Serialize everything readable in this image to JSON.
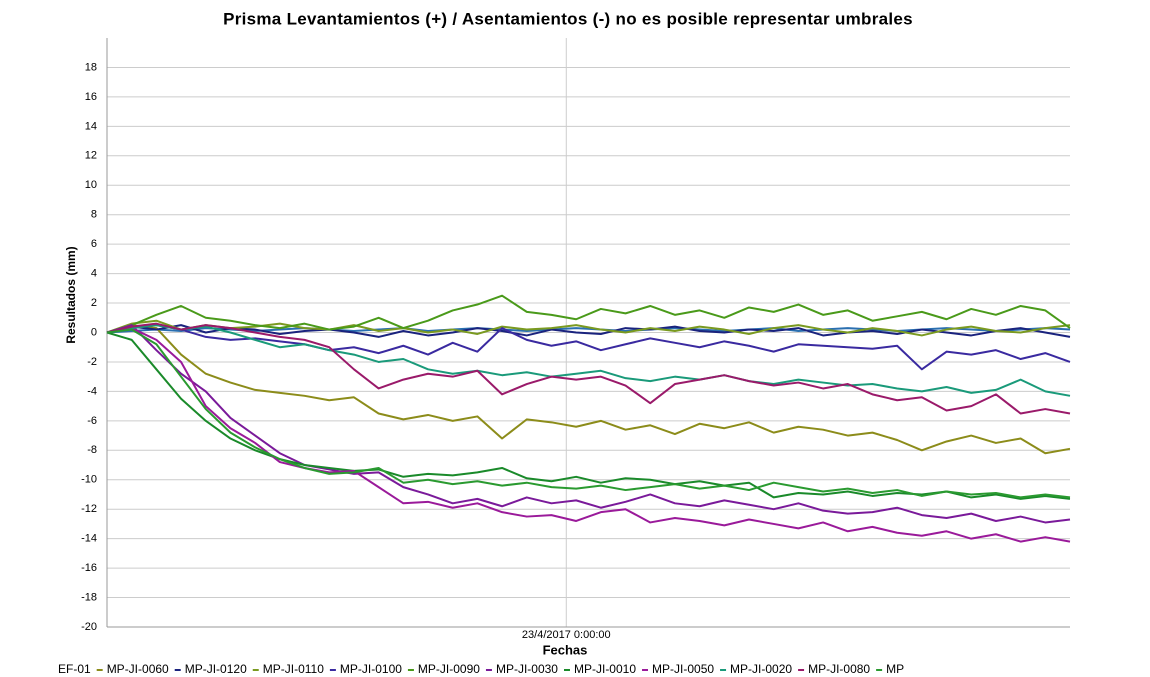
{
  "chart_data": {
    "type": "line",
    "title": "Prisma Levantamientos (+) / Asentamientos (-) no es posible representar umbrales",
    "xlabel": "Fechas",
    "ylabel": "Resultados (mm)",
    "xlim": [
      0,
      39
    ],
    "xticks": [
      {
        "value": 18.6,
        "label": "23/4/2017 0:00:00"
      }
    ],
    "ylim": [
      -20,
      20
    ],
    "yticks": [
      -20,
      -18,
      -16,
      -14,
      -12,
      -10,
      -8,
      -6,
      -4,
      -2,
      0,
      2,
      4,
      6,
      8,
      10,
      12,
      14,
      16,
      18
    ],
    "grid": true,
    "legend": "bottom",
    "series": [
      {
        "name": "EF-01",
        "color": "#2a6fb0",
        "values": [
          0,
          0.1,
          0.2,
          0.1,
          0.3,
          0.2,
          0.1,
          0.2,
          0.3,
          0.2,
          0.1,
          0.2,
          0.3,
          0.1,
          0.2,
          0.3,
          0.2,
          0.1,
          0.2,
          0.3,
          0.2,
          0.1,
          0.2,
          0.3,
          0.2,
          0.1,
          0.2,
          0.3,
          0.1,
          0.2,
          0.3,
          0.2,
          0.1,
          0.2,
          0.3,
          0.2,
          0.1,
          0.2,
          0.3,
          0.2
        ]
      },
      {
        "name": "MP-JI-0060",
        "color": "#8c8c1a",
        "values": [
          0,
          0.5,
          0.3,
          -1.5,
          -2.8,
          -3.4,
          -3.9,
          -4.1,
          -4.3,
          -4.6,
          -4.4,
          -5.5,
          -5.9,
          -5.6,
          -6.0,
          -5.7,
          -7.2,
          -5.9,
          -6.1,
          -6.4,
          -6.0,
          -6.6,
          -6.3,
          -6.9,
          -6.2,
          -6.5,
          -6.1,
          -6.8,
          -6.4,
          -6.6,
          -7.0,
          -6.8,
          -7.3,
          -8.0,
          -7.4,
          -7.0,
          -7.5,
          -7.2,
          -8.2,
          -7.9
        ]
      },
      {
        "name": "MP-JI-0120",
        "color": "#1a237e",
        "values": [
          0,
          0.4,
          0.2,
          0.5,
          0.0,
          0.3,
          0.2,
          -0.1,
          0.1,
          0.2,
          0.0,
          -0.3,
          0.1,
          -0.2,
          0.0,
          0.3,
          0.1,
          -0.2,
          0.2,
          0.0,
          -0.1,
          0.3,
          0.2,
          0.4,
          0.1,
          0.0,
          0.2,
          0.1,
          0.3,
          -0.2,
          0.0,
          0.1,
          -0.1,
          0.2,
          0.0,
          -0.2,
          0.1,
          0.3,
          0.0,
          -0.3
        ]
      },
      {
        "name": "MP-JI-0110",
        "color": "#7a9a20",
        "values": [
          0,
          0.6,
          0.8,
          0.2,
          0.5,
          0.3,
          0.4,
          0.6,
          0.3,
          0.2,
          0.5,
          0.1,
          0.3,
          0.0,
          0.2,
          -0.1,
          0.4,
          0.2,
          0.3,
          0.5,
          0.2,
          0.0,
          0.3,
          0.1,
          0.4,
          0.2,
          -0.1,
          0.3,
          0.5,
          0.2,
          0.0,
          0.3,
          0.1,
          -0.2,
          0.2,
          0.4,
          0.1,
          0.0,
          0.3,
          0.5
        ]
      },
      {
        "name": "MP-JI-0100",
        "color": "#3a2aa0",
        "values": [
          0,
          0.3,
          0.5,
          0.2,
          -0.3,
          -0.5,
          -0.4,
          -0.6,
          -0.8,
          -1.2,
          -1.0,
          -1.4,
          -0.9,
          -1.5,
          -0.7,
          -1.3,
          0.3,
          -0.5,
          -0.9,
          -0.6,
          -1.2,
          -0.8,
          -0.4,
          -0.7,
          -1.0,
          -0.6,
          -0.9,
          -1.3,
          -0.8,
          -0.9,
          -1.0,
          -1.1,
          -0.9,
          -2.5,
          -1.3,
          -1.5,
          -1.2,
          -1.8,
          -1.4,
          -2.0
        ]
      },
      {
        "name": "MP-JI-0090",
        "color": "#4a9a1a",
        "values": [
          0,
          0.5,
          1.2,
          1.8,
          1.0,
          0.8,
          0.5,
          0.3,
          0.6,
          0.2,
          0.4,
          1.0,
          0.3,
          0.8,
          1.5,
          1.9,
          2.5,
          1.4,
          1.2,
          0.9,
          1.6,
          1.3,
          1.8,
          1.2,
          1.5,
          1.0,
          1.7,
          1.4,
          1.9,
          1.2,
          1.5,
          0.8,
          1.1,
          1.4,
          0.9,
          1.6,
          1.2,
          1.8,
          1.5,
          0.3
        ]
      },
      {
        "name": "MP-JI-0030",
        "color": "#7a1a9a",
        "values": [
          0,
          0.5,
          -1.2,
          -2.8,
          -4.0,
          -5.8,
          -7.0,
          -8.2,
          -9.0,
          -9.3,
          -9.6,
          -9.5,
          -10.5,
          -11.0,
          -11.6,
          -11.3,
          -11.8,
          -11.2,
          -11.6,
          -11.4,
          -11.9,
          -11.5,
          -11.0,
          -11.6,
          -11.8,
          -11.4,
          -11.7,
          -12.0,
          -11.6,
          -12.1,
          -12.3,
          -12.2,
          -11.9,
          -12.4,
          -12.6,
          -12.3,
          -12.8,
          -12.5,
          -12.9,
          -12.7
        ]
      },
      {
        "name": "MP-JI-0010",
        "color": "#1a8a2a",
        "values": [
          0,
          -0.5,
          -2.5,
          -4.5,
          -6.0,
          -7.2,
          -8.0,
          -8.6,
          -9.0,
          -9.2,
          -9.4,
          -9.3,
          -9.8,
          -9.6,
          -9.7,
          -9.5,
          -9.2,
          -9.9,
          -10.1,
          -9.8,
          -10.2,
          -9.9,
          -10.0,
          -10.3,
          -10.1,
          -10.4,
          -10.2,
          -11.2,
          -10.9,
          -11.0,
          -10.8,
          -11.1,
          -10.9,
          -11.0,
          -10.8,
          -11.2,
          -11.0,
          -11.3,
          -11.1,
          -11.3
        ]
      },
      {
        "name": "MP-JI-0050",
        "color": "#9a1a9a",
        "values": [
          0,
          0.3,
          -0.5,
          -2.0,
          -5.0,
          -6.5,
          -7.5,
          -8.8,
          -9.2,
          -9.5,
          -9.4,
          -10.5,
          -11.6,
          -11.5,
          -11.9,
          -11.6,
          -12.2,
          -12.5,
          -12.4,
          -12.8,
          -12.2,
          -12.0,
          -12.9,
          -12.6,
          -12.8,
          -13.1,
          -12.7,
          -13.0,
          -13.3,
          -12.9,
          -13.5,
          -13.2,
          -13.6,
          -13.8,
          -13.5,
          -14.0,
          -13.7,
          -14.2,
          -13.9,
          -14.2
        ]
      },
      {
        "name": "MP-JI-0020",
        "color": "#1a9a7a",
        "values": [
          0,
          0.3,
          0.5,
          0.2,
          0.4,
          0.0,
          -0.5,
          -1.0,
          -0.8,
          -1.2,
          -1.5,
          -2.0,
          -1.8,
          -2.5,
          -2.8,
          -2.6,
          -2.9,
          -2.7,
          -3.0,
          -2.8,
          -2.6,
          -3.1,
          -3.3,
          -3.0,
          -3.2,
          -2.9,
          -3.3,
          -3.5,
          -3.2,
          -3.4,
          -3.6,
          -3.5,
          -3.8,
          -4.0,
          -3.7,
          -4.1,
          -3.9,
          -3.2,
          -4.0,
          -4.3
        ]
      },
      {
        "name": "MP-JI-0080",
        "color": "#9a1a6a",
        "values": [
          0,
          0.4,
          0.6,
          0.2,
          0.5,
          0.3,
          0.0,
          -0.3,
          -0.5,
          -1.0,
          -2.5,
          -3.8,
          -3.2,
          -2.8,
          -3.0,
          -2.6,
          -4.2,
          -3.5,
          -3.0,
          -3.2,
          -3.0,
          -3.6,
          -4.8,
          -3.5,
          -3.2,
          -2.9,
          -3.3,
          -3.6,
          -3.4,
          -3.8,
          -3.5,
          -4.2,
          -4.6,
          -4.4,
          -5.3,
          -5.0,
          -4.2,
          -5.5,
          -5.2,
          -5.5
        ]
      },
      {
        "name": "MP",
        "color": "#2a9a30",
        "values": [
          0,
          0.2,
          -0.8,
          -3.0,
          -5.2,
          -6.8,
          -7.8,
          -8.6,
          -9.2,
          -9.6,
          -9.5,
          -9.2,
          -10.2,
          -10.0,
          -10.3,
          -10.1,
          -10.4,
          -10.2,
          -10.5,
          -10.6,
          -10.4,
          -10.7,
          -10.5,
          -10.3,
          -10.6,
          -10.4,
          -10.7,
          -10.2,
          -10.5,
          -10.8,
          -10.6,
          -10.9,
          -10.7,
          -11.1,
          -10.8,
          -11.0,
          -10.9,
          -11.2,
          -11.0,
          -11.2
        ]
      }
    ]
  }
}
